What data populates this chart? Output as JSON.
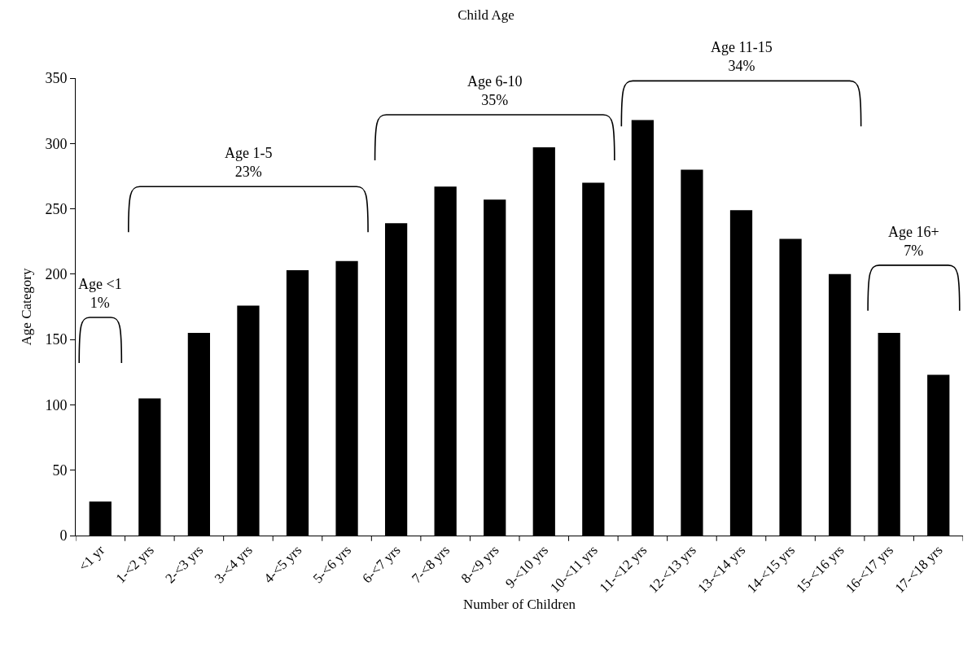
{
  "chart_data": {
    "type": "bar",
    "title": "Child Age",
    "xlabel": "Number of Children",
    "ylabel": "Age Category",
    "categories": [
      "<1 yr",
      "1-<2 yrs",
      "2-<3 yrs",
      "3-<4 yrs",
      "4-<5 yrs",
      "5-<6 yrs",
      "6-<7 yrs",
      "7-<8 yrs",
      "8-<9 yrs",
      "9-<10 yrs",
      "10-<11 yrs",
      "11-<12 yrs",
      "12-<13 yrs",
      "13-<14 yrs",
      "14-<15 yrs",
      "15-<16 yrs",
      "16-<17 yrs",
      "17-<18 yrs"
    ],
    "values": [
      26,
      105,
      155,
      176,
      203,
      210,
      239,
      267,
      257,
      297,
      270,
      318,
      280,
      249,
      227,
      200,
      155,
      123
    ],
    "color": "#000000",
    "ylim": [
      0,
      350
    ],
    "yticks": [
      0,
      50,
      100,
      150,
      200,
      250,
      300,
      350
    ],
    "grid": false,
    "annotations": [
      "Age <1\n1%",
      "Age 1-5\n23%",
      "Age 6-10\n35%",
      "Age 11-15\n34%",
      "Age 16+\n7%"
    ]
  }
}
